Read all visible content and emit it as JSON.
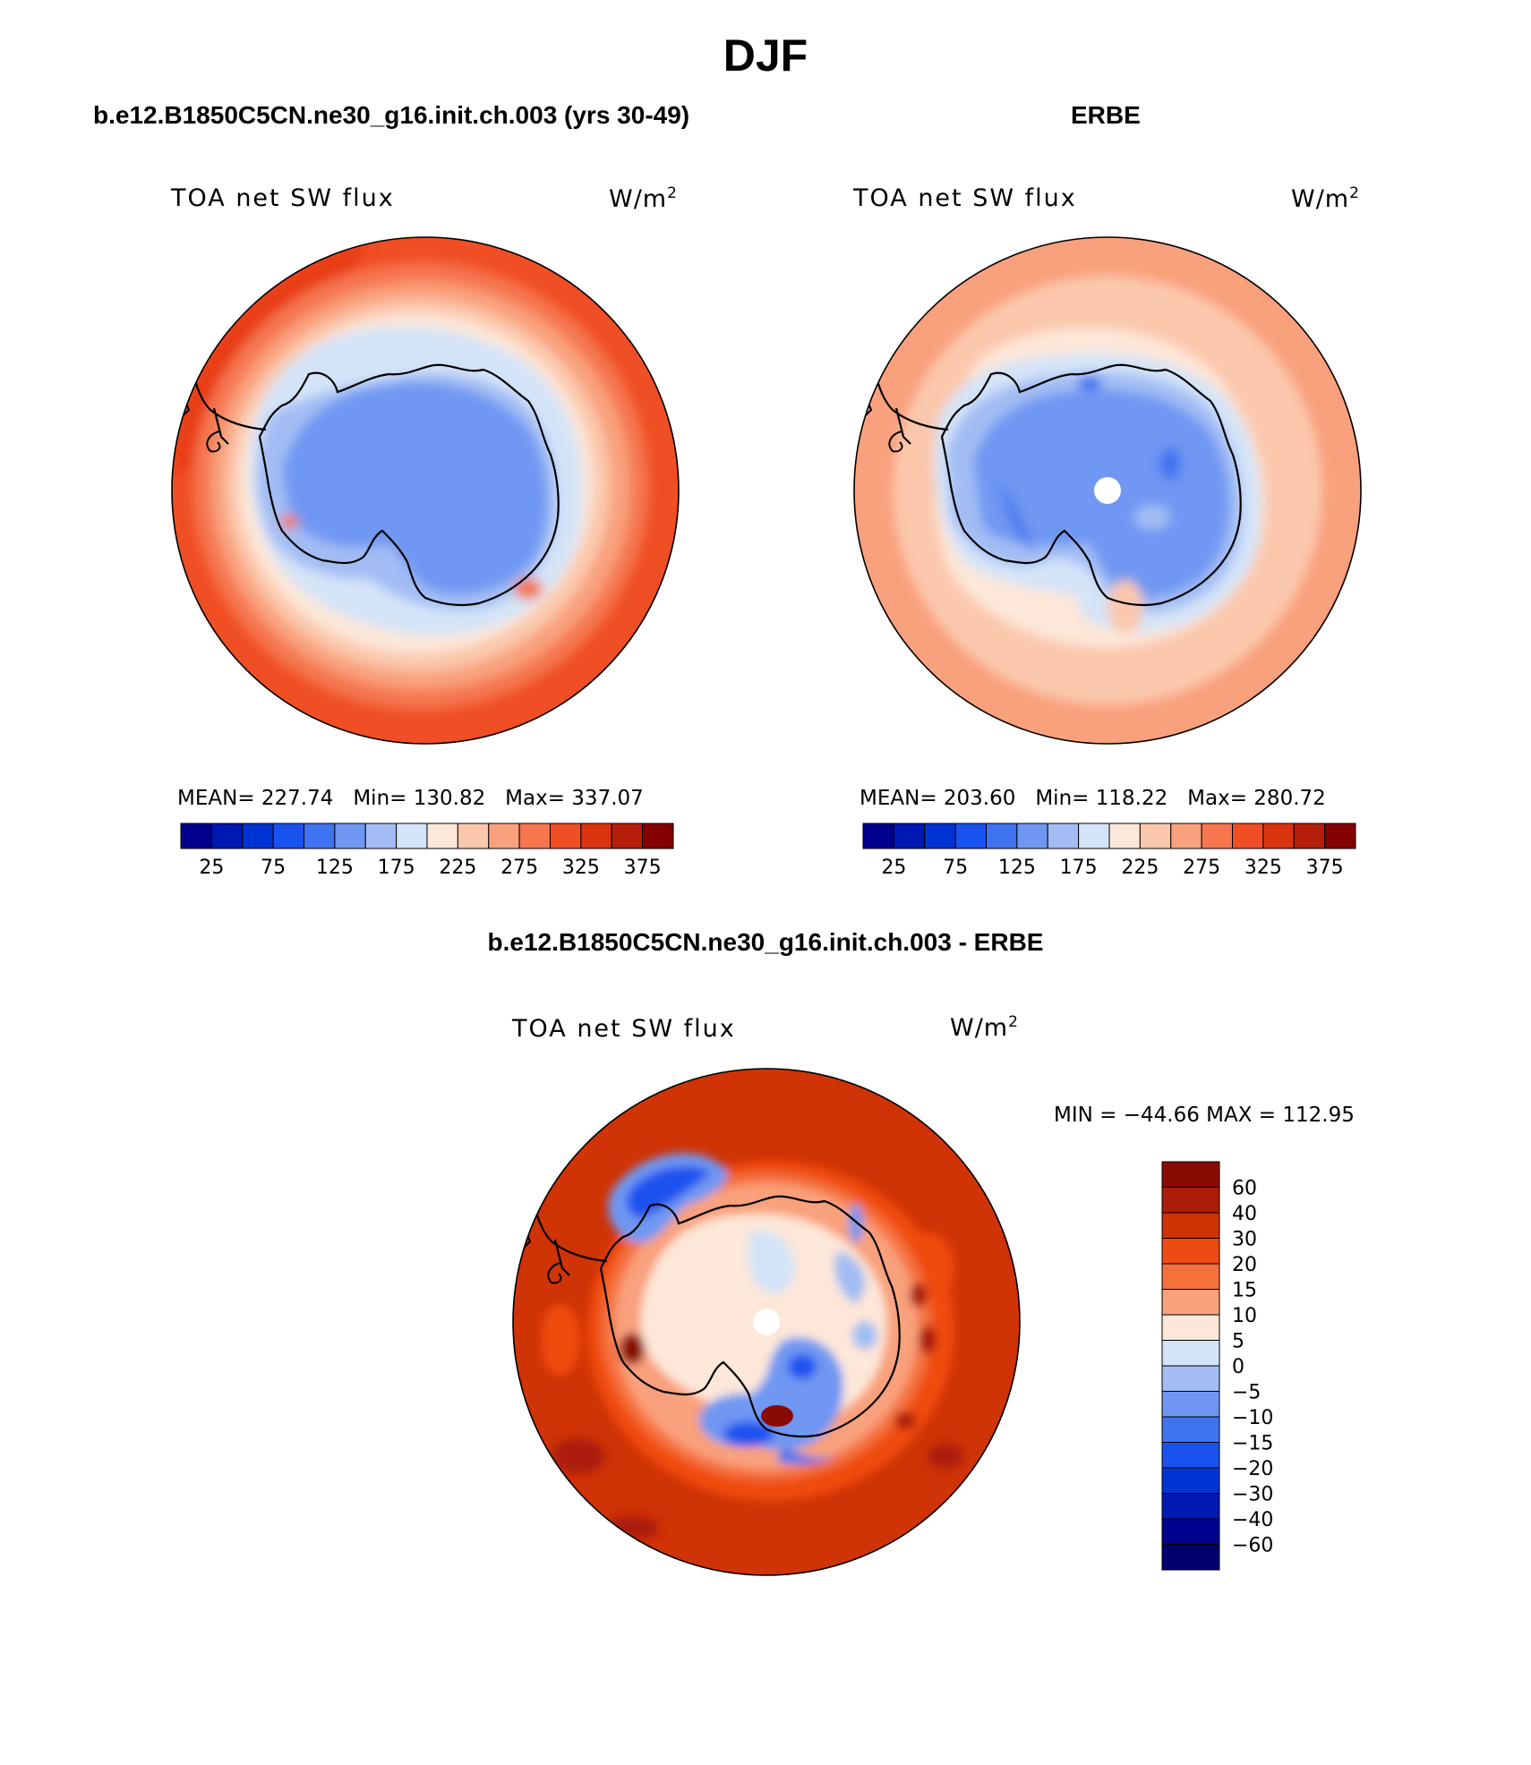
{
  "figure": {
    "title": "DJF",
    "unit_base": "W/m",
    "unit_exp": "2"
  },
  "panels": {
    "model": {
      "title": "b.e12.B1850C5CN.ne30_g16.init.ch.003 (yrs 30-49)",
      "variable": "TOA net SW flux",
      "stats": {
        "mean_label": "MEAN=",
        "mean": "227.74",
        "min_label": "Min=",
        "min": "130.82",
        "max_label": "Max=",
        "max": "337.07"
      }
    },
    "obs": {
      "title": "ERBE",
      "variable": "TOA net SW flux",
      "stats": {
        "mean_label": "MEAN=",
        "mean": "203.60",
        "min_label": "Min=",
        "min": "118.22",
        "max_label": "Max=",
        "max": "280.72"
      }
    },
    "diff": {
      "title": "b.e12.B1850C5CN.ne30_g16.init.ch.003 - ERBE",
      "variable": "TOA net SW flux",
      "stats": {
        "text": "MIN = −44.66 MAX = 112.95"
      }
    }
  },
  "colorbars": {
    "absolute": {
      "colors": [
        "#00008f",
        "#0018b4",
        "#0033d6",
        "#1a52f0",
        "#3f73f0",
        "#6f97f2",
        "#a3bdf4",
        "#d4e4f8",
        "#fde7d8",
        "#fbc8ad",
        "#f9a07c",
        "#f5764f",
        "#f04e24",
        "#da3310",
        "#b51e0a",
        "#850000"
      ],
      "tick_labels": [
        "25",
        "75",
        "125",
        "175",
        "225",
        "275",
        "325",
        "375"
      ]
    },
    "difference": {
      "colors_top_to_bottom": [
        "#8a0b04",
        "#ac1c07",
        "#d03306",
        "#ef4b11",
        "#f5713c",
        "#f9a07c",
        "#fde7d8",
        "#d4e4f8",
        "#a3bdf4",
        "#6f97f2",
        "#3f73f0",
        "#1a52f0",
        "#0033d6",
        "#0018b4",
        "#00008f",
        "#00006e"
      ],
      "tick_labels": [
        "60",
        "40",
        "30",
        "20",
        "15",
        "10",
        "5",
        "0",
        "−5",
        "−10",
        "−15",
        "−20",
        "−30",
        "−40",
        "−60"
      ]
    }
  }
}
